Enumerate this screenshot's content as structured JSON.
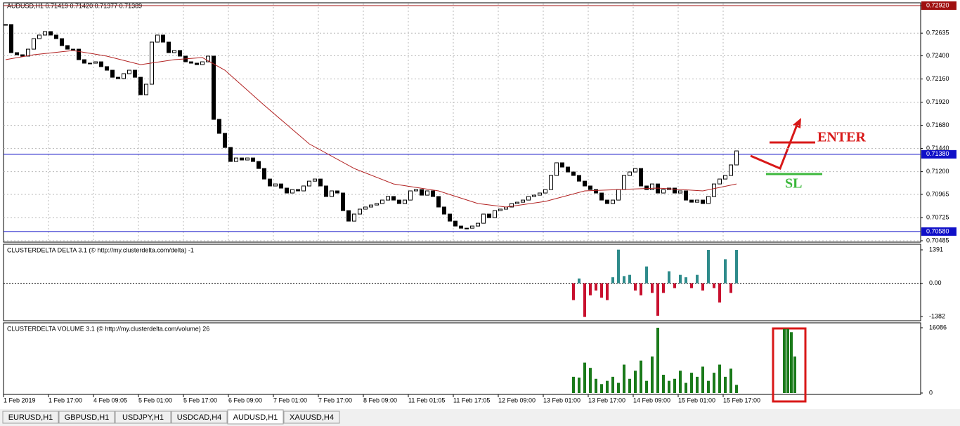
{
  "header": "AUDUSD,H1  0.71419 0.71420 0.71377 0.71389",
  "chart_data": [
    {
      "type": "candlestick",
      "name": "price",
      "closes": [
        0.72724,
        0.72433,
        0.72411,
        0.72397,
        0.72469,
        0.72578,
        0.72615,
        0.72651,
        0.72615,
        0.72578,
        0.72506,
        0.72469,
        0.72469,
        0.7236,
        0.72324,
        0.72324,
        0.72338,
        0.72288,
        0.72251,
        0.72178,
        0.72164,
        0.72215,
        0.72251,
        0.72178,
        0.71997,
        0.72106,
        0.72542,
        0.72615,
        0.72542,
        0.72433,
        0.72455,
        0.72397,
        0.72338,
        0.72324,
        0.72309,
        0.72338,
        0.72397,
        0.71742,
        0.71597,
        0.71451,
        0.71306,
        0.71342,
        0.71321,
        0.71342,
        0.71306,
        0.71233,
        0.71124,
        0.71052,
        0.71073,
        0.7103,
        0.70979,
        0.71015,
        0.71001,
        0.71052,
        0.71102,
        0.71124,
        0.71052,
        0.70943,
        0.71001,
        0.70979,
        0.70797,
        0.70688,
        0.70761,
        0.70812,
        0.70834,
        0.70855,
        0.7087,
        0.70906,
        0.70943,
        0.70906,
        0.7087,
        0.70906,
        0.71001,
        0.71015,
        0.70957,
        0.71001,
        0.70943,
        0.70834,
        0.70761,
        0.70688,
        0.70637,
        0.70615,
        0.70615,
        0.70637,
        0.70666,
        0.70761,
        0.70724,
        0.70797,
        0.70812,
        0.70834,
        0.7087,
        0.70884,
        0.70906,
        0.70943,
        0.70957,
        0.70979,
        0.71015,
        0.71161,
        0.71292,
        0.71248,
        0.71197,
        0.71161,
        0.71102,
        0.71052,
        0.71015,
        0.70979,
        0.70906,
        0.7087,
        0.70906,
        0.71015,
        0.71161,
        0.71197,
        0.71233,
        0.71052,
        0.71015,
        0.71073,
        0.70979,
        0.71015,
        0.7103,
        0.70979,
        0.71001,
        0.70906,
        0.70884,
        0.70906,
        0.7087,
        0.70943,
        0.71073,
        0.71124,
        0.71161,
        0.7127,
        0.71415
      ],
      "ma": {
        "color": "#b22222",
        "index": [
          0,
          5,
          12,
          18,
          24,
          30,
          35,
          39,
          46,
          54,
          62,
          69,
          77,
          84,
          89,
          96,
          103,
          109,
          116,
          124,
          130
        ],
        "values": [
          0.7236,
          0.72411,
          0.72455,
          0.72397,
          0.72309,
          0.7236,
          0.72382,
          0.72251,
          0.71888,
          0.71488,
          0.71233,
          0.71073,
          0.71001,
          0.7087,
          0.70834,
          0.70892,
          0.71001,
          0.71015,
          0.7103,
          0.71001,
          0.71073
        ]
      },
      "ylim": [
        0.70485,
        0.7292
      ],
      "yticks": [
        {
          "value": 0.7292,
          "label": "0.72920"
        },
        {
          "value": 0.72635,
          "label": "0.72635"
        },
        {
          "value": 0.724,
          "label": "0.72400"
        },
        {
          "value": 0.7216,
          "label": "0.72160"
        },
        {
          "value": 0.7192,
          "label": "0.71920"
        },
        {
          "value": 0.7168,
          "label": "0.71680"
        },
        {
          "value": 0.7144,
          "label": "0.71440"
        },
        {
          "value": 0.712,
          "label": "0.71200"
        },
        {
          "value": 0.70965,
          "label": "0.70965"
        },
        {
          "value": 0.70725,
          "label": "0.70725"
        },
        {
          "value": 0.70485,
          "label": "0.70485"
        }
      ],
      "levels": [
        {
          "value": 0.7292,
          "label": "0.72920",
          "color": "#a01010"
        },
        {
          "value": 0.7138,
          "label": "0.71380",
          "color": "#1010c8"
        },
        {
          "value": 0.7058,
          "label": "0.70580",
          "color": "#1010c8"
        }
      ],
      "categories": [
        "1 Feb 2019",
        "1 Feb 17:00",
        "4 Feb 09:05",
        "5 Feb 01:00",
        "5 Feb 17:00",
        "6 Feb 09:00",
        "7 Feb 01:00",
        "7 Feb 17:00",
        "8 Feb 09:00",
        "11 Feb 01:05",
        "11 Feb 17:05",
        "12 Feb 09:00",
        "13 Feb 01:00",
        "13 Feb 17:00",
        "14 Feb 09:00",
        "15 Feb 01:00",
        "15 Feb 17:00"
      ],
      "grid": true
    },
    {
      "type": "bar",
      "name": "delta",
      "title": "CLUSTERDELTA DELTA 3.1 (© http://my.clusterdelta.com/delta) -1",
      "values": [
        -700,
        200,
        -1400,
        -500,
        -300,
        -600,
        -700,
        250,
        1400,
        300,
        350,
        -300,
        -500,
        700,
        -400,
        -1350,
        -400,
        500,
        -200,
        350,
        250,
        -200,
        350,
        -300,
        1390,
        -200,
        -800,
        1000,
        -400,
        1390
      ],
      "pos_color": "#2e8b8b",
      "neg_color": "#c8102e",
      "ylim": [
        -1382,
        1391
      ],
      "yticks": [
        1391,
        {
          "value": 0,
          "label": "0.00"
        },
        -1382
      ]
    },
    {
      "type": "bar",
      "name": "volume",
      "title": "CLUSTERDELTA VOLUME 3.1 (© http://my.clusterdelta.com/volume) 26",
      "values": [
        4000,
        3800,
        7500,
        6200,
        3500,
        2200,
        3000,
        4000,
        2500,
        7000,
        3500,
        5500,
        8000,
        3000,
        9000,
        16086,
        4500,
        3000,
        3500,
        5500,
        2500,
        5000,
        4000,
        6500,
        3000,
        5000,
        7000,
        4000,
        6000,
        2000
      ],
      "highlight_values": [
        15800,
        15800,
        15000,
        9000
      ],
      "color": "#1a7a1a",
      "ylim": [
        0,
        16086
      ],
      "yticks": [
        16086,
        0
      ]
    }
  ],
  "annotations": {
    "enter": "ENTER",
    "sl": "SL"
  },
  "tabs": [
    "EURUSD,H1",
    "GBPUSD,H1",
    "USDJPY,H1",
    "USDCAD,H4",
    "AUDUSD,H1",
    "XAUUSD,H4"
  ],
  "active_tab": 4
}
